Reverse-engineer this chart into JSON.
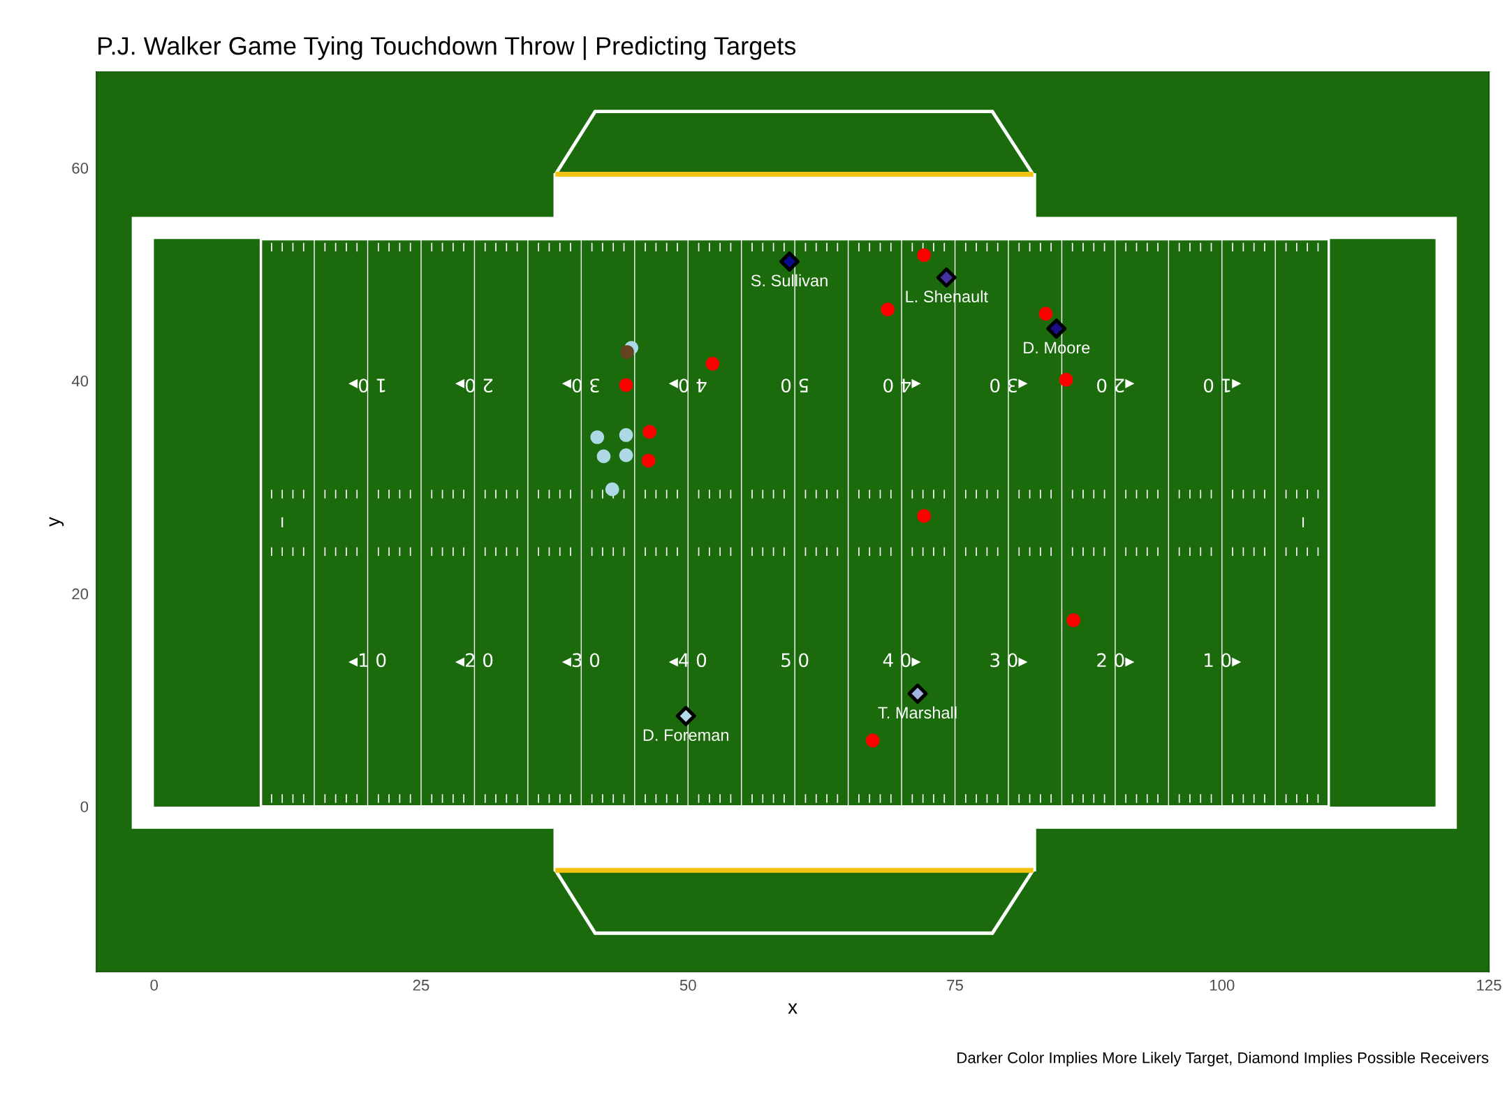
{
  "chart_data": {
    "type": "scatter",
    "title": "P.J. Walker Game Tying Touchdown Throw | Predicting Targets",
    "xlabel": "x",
    "ylabel": "y",
    "xlim": [
      -5.4,
      125
    ],
    "xticks": [
      0,
      25,
      50,
      75,
      100,
      125
    ],
    "ylim": [
      -15.5,
      69
    ],
    "yticks": [
      0,
      20,
      40,
      60
    ],
    "grid": false,
    "legend": false,
    "series": [
      {
        "marker": "circle",
        "color": "#ff0000",
        "x": [
          72.1,
          68.7,
          83.5,
          85.4,
          52.3,
          44.2,
          46.4,
          46.3,
          72.1,
          86.1,
          67.3
        ],
        "values": [
          51.8,
          46.7,
          46.3,
          40.1,
          41.6,
          39.6,
          35.2,
          32.5,
          27.3,
          17.5,
          6.2
        ]
      },
      {
        "marker": "circle",
        "color": "#add8e6",
        "x": [
          44.7,
          41.5,
          44.2,
          42.1,
          44.2,
          42.9
        ],
        "values": [
          43.1,
          34.7,
          34.9,
          32.9,
          33.0,
          29.8
        ]
      },
      {
        "marker": "circle",
        "color": "#654321",
        "x": [
          44.3
        ],
        "values": [
          42.7
        ]
      },
      {
        "marker": "diamond",
        "name": "S. Sullivan",
        "color": "#0b0b8c",
        "x": [
          59.5
        ],
        "values": [
          51.2
        ]
      },
      {
        "marker": "diamond",
        "name": "L. Shenault",
        "color": "#4433a0",
        "x": [
          74.2
        ],
        "values": [
          49.7
        ]
      },
      {
        "marker": "diamond",
        "name": "D. Moore",
        "color": "#1a0e8a",
        "x": [
          84.5
        ],
        "values": [
          44.9
        ]
      },
      {
        "marker": "diamond",
        "name": "T. Marshall",
        "color": "#a0b4e0",
        "x": [
          71.5
        ],
        "values": [
          10.6
        ]
      },
      {
        "marker": "diamond",
        "name": "D. Foreman",
        "color": "#b4dce8",
        "x": [
          49.8
        ],
        "values": [
          8.5
        ]
      }
    ],
    "ref_lines": [
      {
        "axis": "x",
        "value": 15,
        "color": "#ffffff"
      },
      {
        "axis": "x",
        "value": 20,
        "color": "#ffffff"
      },
      {
        "axis": "x",
        "value": 25,
        "color": "#ffffff"
      },
      {
        "axis": "x",
        "value": 30,
        "color": "#ffffff"
      },
      {
        "axis": "x",
        "value": 35,
        "color": "#ffffff"
      },
      {
        "axis": "x",
        "value": 40,
        "color": "#ffffff"
      },
      {
        "axis": "x",
        "value": 45,
        "color": "#ffffff"
      },
      {
        "axis": "x",
        "value": 50,
        "color": "#ffffff"
      },
      {
        "axis": "x",
        "value": 55,
        "color": "#ffffff"
      },
      {
        "axis": "x",
        "value": 60,
        "color": "#ffffff"
      },
      {
        "axis": "x",
        "value": 65,
        "color": "#ffffff"
      },
      {
        "axis": "x",
        "value": 70,
        "color": "#ffffff"
      },
      {
        "axis": "x",
        "value": 75,
        "color": "#ffffff"
      },
      {
        "axis": "x",
        "value": 80,
        "color": "#ffffff"
      },
      {
        "axis": "x",
        "value": 85,
        "color": "#ffffff"
      },
      {
        "axis": "x",
        "value": 90,
        "color": "#ffffff"
      },
      {
        "axis": "x",
        "value": 95,
        "color": "#ffffff"
      },
      {
        "axis": "x",
        "value": 100,
        "color": "#ffffff"
      },
      {
        "axis": "x",
        "value": 105,
        "color": "#ffffff"
      }
    ],
    "annotations": [
      {
        "text": "◂1 0",
        "x": 20,
        "y": 13.6
      },
      {
        "text": "◂2 0",
        "x": 30,
        "y": 13.6
      },
      {
        "text": "◂3 0",
        "x": 40,
        "y": 13.6
      },
      {
        "text": "◂4 0",
        "x": 50,
        "y": 13.6
      },
      {
        "text": "5 0",
        "x": 60,
        "y": 13.6
      },
      {
        "text": "4 0▸",
        "x": 70,
        "y": 13.6
      },
      {
        "text": "3 0▸",
        "x": 80,
        "y": 13.6
      },
      {
        "text": "2 0▸",
        "x": 90,
        "y": 13.6
      },
      {
        "text": "1 0▸",
        "x": 100,
        "y": 13.6
      },
      {
        "text": "1 0▸",
        "x": 20,
        "y": 39.7
      },
      {
        "text": "2 0▸",
        "x": 30,
        "y": 39.7
      },
      {
        "text": "3 0▸",
        "x": 40,
        "y": 39.7
      },
      {
        "text": "4 0▸",
        "x": 50,
        "y": 39.7
      },
      {
        "text": "5 0",
        "x": 60,
        "y": 39.7
      },
      {
        "text": "◂4 0",
        "x": 70,
        "y": 39.7
      },
      {
        "text": "◂3 0",
        "x": 80,
        "y": 39.7
      },
      {
        "text": "◂2 0",
        "x": 90,
        "y": 39.7
      },
      {
        "text": "◂1 0",
        "x": 100,
        "y": 39.7
      },
      "Darker Color Implies More Likely Target, Diamond Implies Possible Receivers"
    ]
  }
}
